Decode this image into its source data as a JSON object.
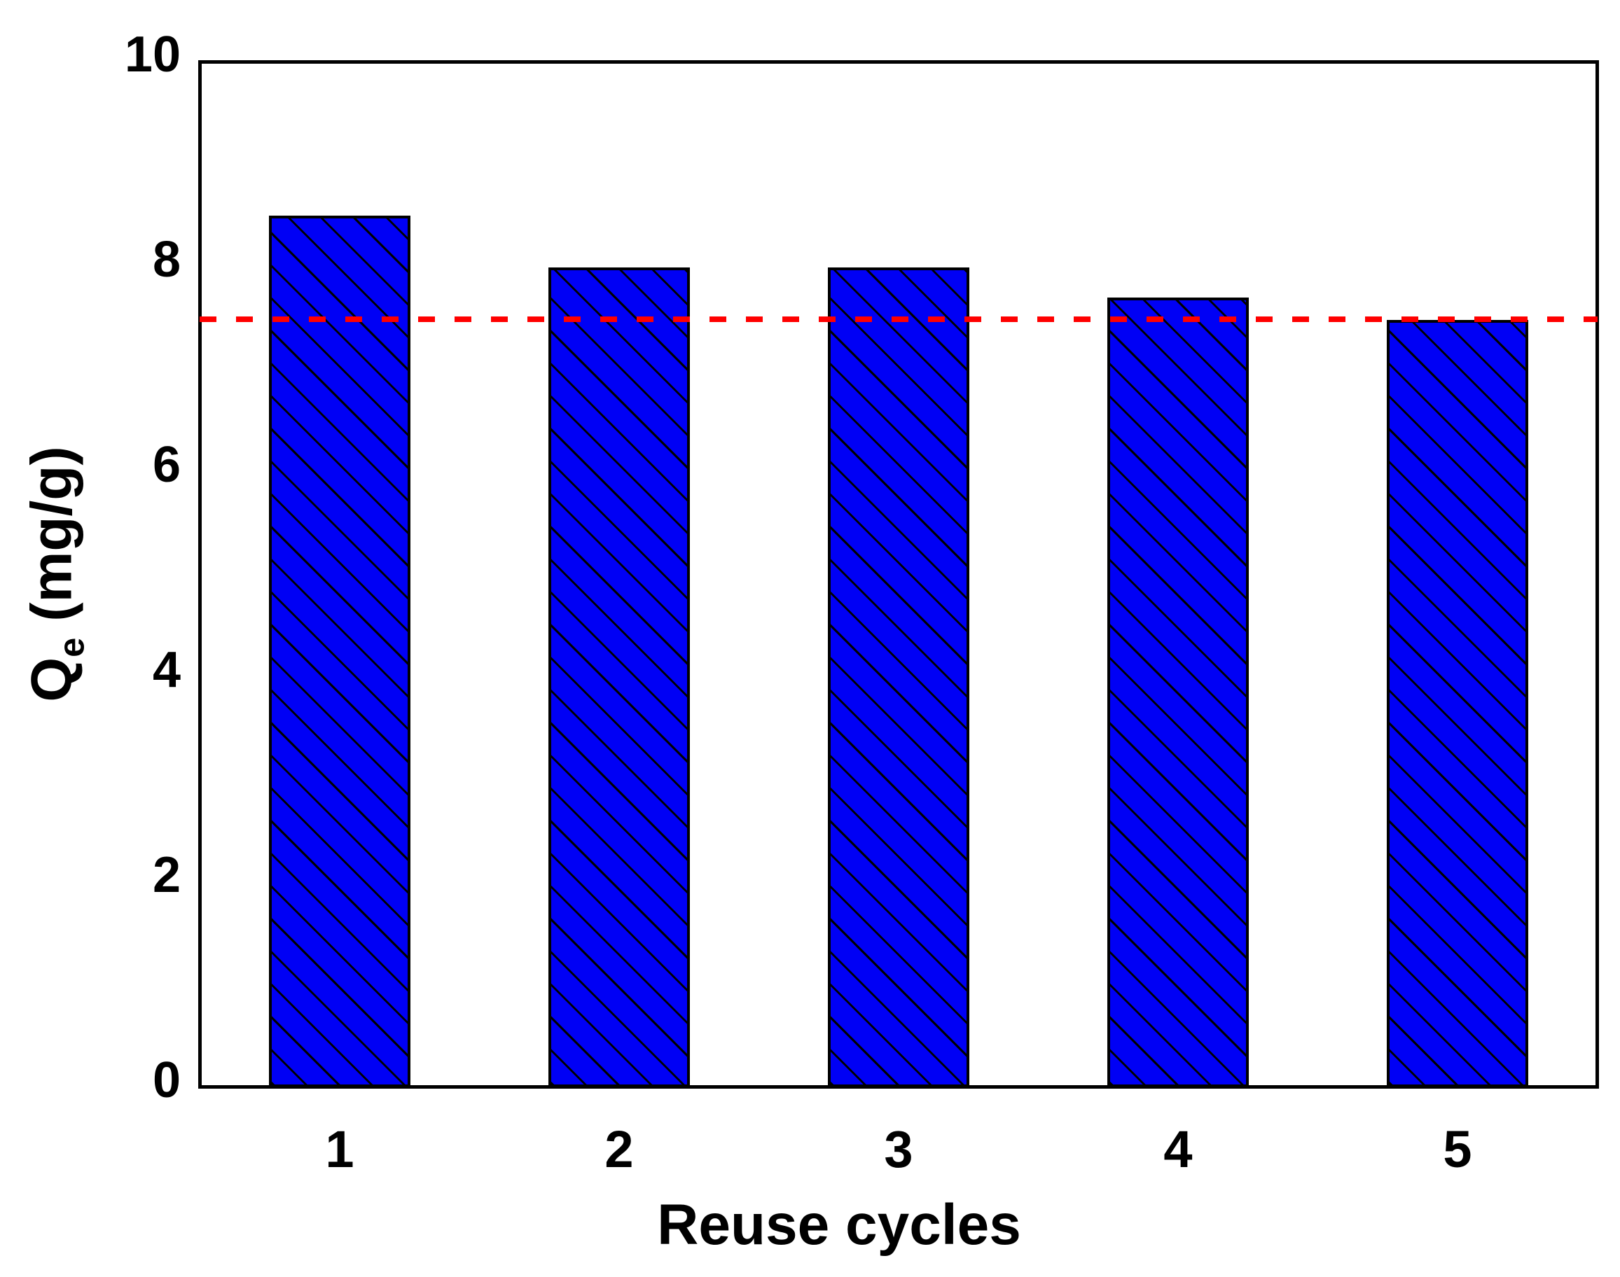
{
  "chart_data": {
    "type": "bar",
    "title": "",
    "categories": [
      "1",
      "2",
      "3",
      "4",
      "5"
    ],
    "values": [
      8.5,
      7.99,
      7.99,
      7.7,
      7.48
    ],
    "xlabel": "Reuse cycles",
    "ylabel": "Qe (mg/g)",
    "ylabel_parts": {
      "main": "Q",
      "sub": "e",
      "unit": "(mg/g)"
    },
    "ylim": [
      0,
      10
    ],
    "yticks": [
      "0",
      "2",
      "4",
      "6",
      "8",
      "10"
    ],
    "grid": false,
    "legend": null,
    "reference_line": {
      "value": 7.49,
      "style": "dashed",
      "color": "#ff0000"
    },
    "bar_style": {
      "fill_color": "#0000f5",
      "edge_color": "#000000",
      "hatch": "\\\\ diagonal"
    }
  }
}
